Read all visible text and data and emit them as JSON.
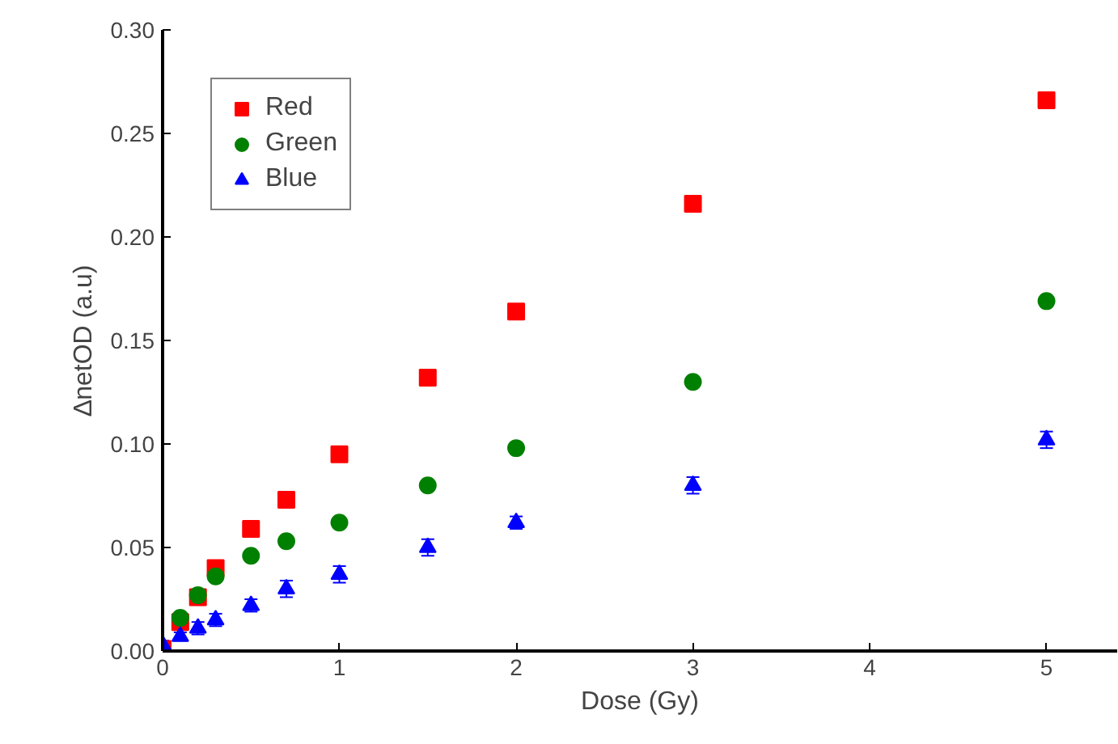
{
  "chart_data": {
    "type": "scatter",
    "xlabel": "Dose (Gy)",
    "ylabel": "∆netOD (a.u)",
    "xlim": [
      0,
      5.4
    ],
    "xticks": [
      0,
      1,
      2,
      3,
      4,
      5
    ],
    "ylim": [
      0,
      0.3
    ],
    "yticks": [
      {
        "value": 0,
        "label": "0.00"
      },
      {
        "value": 0.05,
        "label": "0.05"
      },
      {
        "value": 0.1,
        "label": "0.10"
      },
      {
        "value": 0.15,
        "label": "0.15"
      },
      {
        "value": 0.2,
        "label": "0.20"
      },
      {
        "value": 0.25,
        "label": "0.25"
      },
      {
        "value": 0.3,
        "label": "0.30"
      }
    ],
    "grid": false,
    "legend": "top left",
    "series": [
      {
        "name": "Red",
        "color": "#ff0000",
        "marker": "square",
        "x": [
          0,
          0.1,
          0.2,
          0.3,
          0.5,
          0.7,
          1,
          1.5,
          2,
          3,
          5
        ],
        "values": [
          0.001,
          0.014,
          0.026,
          0.04,
          0.059,
          0.073,
          0.095,
          0.132,
          0.164,
          0.216,
          0.266
        ]
      },
      {
        "name": "Green",
        "color": "#008000",
        "marker": "circle",
        "x": [
          0.1,
          0.2,
          0.3,
          0.5,
          0.7,
          1,
          1.5,
          2,
          3,
          5
        ],
        "values": [
          0.016,
          0.027,
          0.036,
          0.046,
          0.053,
          0.062,
          0.08,
          0.098,
          0.13,
          0.169
        ]
      },
      {
        "name": "Blue",
        "color": "#0000ff",
        "marker": "triangle",
        "x": [
          0,
          0.1,
          0.2,
          0.3,
          0.5,
          0.7,
          1,
          1.5,
          2,
          3,
          5
        ],
        "values": [
          0.003,
          0.007,
          0.011,
          0.015,
          0.022,
          0.03,
          0.037,
          0.05,
          0.062,
          0.08,
          0.102
        ],
        "errors": [
          0.002,
          0.002,
          0.003,
          0.003,
          0.003,
          0.004,
          0.004,
          0.004,
          0.003,
          0.004,
          0.004
        ]
      }
    ]
  }
}
